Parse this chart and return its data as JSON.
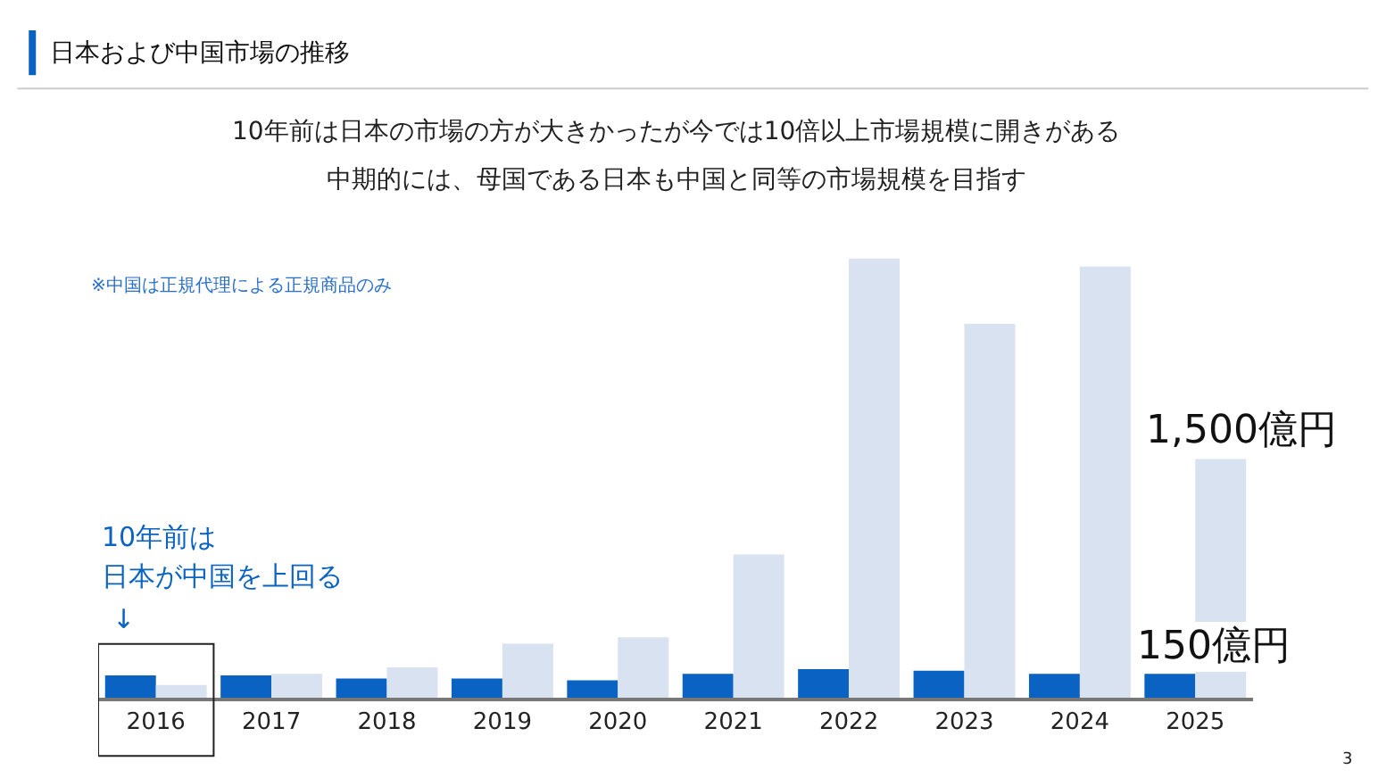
{
  "chart_data": {
    "type": "bar",
    "title": "日本および中国市場の推移",
    "subtitle": "10年前は日本の市場の方が大きかったが今では10倍以上市場規模に開きがある",
    "categories": [
      "2016",
      "2017",
      "2018",
      "2019",
      "2020",
      "2021",
      "2022",
      "2023",
      "2024",
      "2025"
    ],
    "tick_labels": "x",
    "series": [
      {
        "color": "#0a63c2",
        "values": [
          140,
          140,
          120,
          120,
          110,
          150,
          180,
          170,
          150,
          150
        ],
        "value_labels": [
          null,
          null,
          null,
          null,
          null,
          null,
          null,
          null,
          null,
          "150億円"
        ]
      },
      {
        "color": "#d9e2f0",
        "values": [
          80,
          150,
          190,
          340,
          380,
          900,
          2760,
          2350,
          2710,
          1500
        ],
        "value_labels": [
          null,
          null,
          null,
          null,
          null,
          null,
          null,
          null,
          null,
          "1,500億円"
        ]
      }
    ],
    "annotations": [
      "中期的には、母国である日本も中国と同等の市場規模を目指す",
      "※中国は正規代理による正規商品のみ",
      "10年前は",
      "日本が中国を上回る",
      "↓",
      "3"
    ]
  }
}
